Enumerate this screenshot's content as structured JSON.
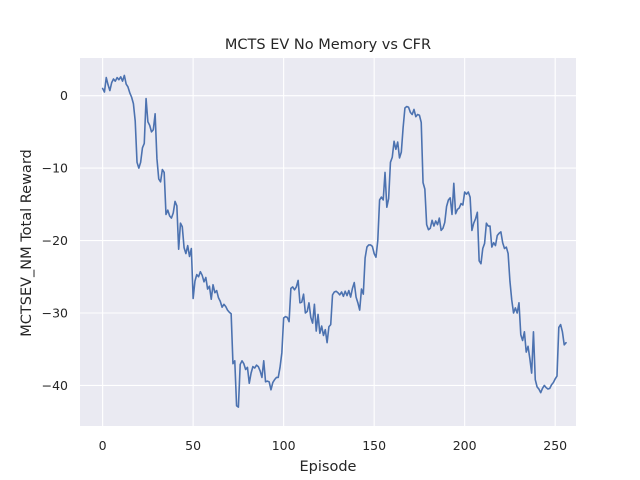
{
  "chart_data": {
    "type": "line",
    "title": "MCTS EV No Memory vs CFR",
    "xlabel": "Episode",
    "ylabel": "MCTSEV_NM Total Reward",
    "xlim": [
      -12.5,
      261.5
    ],
    "ylim": [
      -45.6,
      5.2
    ],
    "xticks": [
      0,
      50,
      100,
      150,
      200,
      250
    ],
    "yticks": [
      0,
      -10,
      -20,
      -30,
      -40
    ],
    "grid": true,
    "background": "#eaeaf2",
    "grid_color": "#ffffff",
    "line_color": "#4c72b0",
    "series": [
      {
        "values": [
          1,
          0.5,
          2.5,
          1.5,
          0.7,
          1.8,
          2.3,
          2.0,
          2.5,
          2.2,
          2.6,
          2.0,
          2.8,
          1.6,
          1.2,
          0.4,
          -0.2,
          -1.1,
          -3.5,
          -9.2,
          -10.0,
          -9.2,
          -7.2,
          -6.6,
          -0.4,
          -3.6,
          -4.1,
          -5.0,
          -4.7,
          -2.5,
          -8.7,
          -11.5,
          -11.9,
          -10.2,
          -10.6,
          -16.4,
          -15.8,
          -16.6,
          -16.9,
          -16.2,
          -14.6,
          -15.2,
          -21.2,
          -17.6,
          -18.1,
          -21.0,
          -21.8,
          -20.7,
          -22.2,
          -21.1,
          -28.0,
          -25.6,
          -24.7,
          -25.0,
          -24.3,
          -24.8,
          -25.7,
          -25.1,
          -26.7,
          -26.3,
          -28.1,
          -26.1,
          -27.2,
          -26.9,
          -27.9,
          -28.4,
          -29.2,
          -28.8,
          -29.1,
          -29.6,
          -29.9,
          -30.1,
          -37.0,
          -36.6,
          -42.8,
          -43.0,
          -37.1,
          -36.6,
          -37.0,
          -37.8,
          -37.5,
          -39.7,
          -38.3,
          -37.4,
          -37.6,
          -37.2,
          -37.4,
          -38.0,
          -38.9,
          -36.6,
          -39.5,
          -39.4,
          -39.5,
          -40.6,
          -39.6,
          -39.2,
          -38.9,
          -38.9,
          -37.5,
          -35.5,
          -30.7,
          -30.5,
          -30.6,
          -31.2,
          -26.6,
          -26.4,
          -26.8,
          -26.4,
          -25.5,
          -28.6,
          -28.5,
          -27.4,
          -30.0,
          -29.8,
          -28.6,
          -30.6,
          -31.4,
          -28.8,
          -32.5,
          -30.2,
          -32.8,
          -31.8,
          -33.1,
          -32.3,
          -34.1,
          -31.9,
          -31.6,
          -27.5,
          -27.1,
          -27.0,
          -27.2,
          -27.5,
          -27.1,
          -27.7,
          -27.0,
          -27.6,
          -26.9,
          -27.8,
          -26.6,
          -25.8,
          -27.8,
          -28.6,
          -29.6,
          -26.7,
          -27.4,
          -22.4,
          -20.9,
          -20.6,
          -20.6,
          -20.8,
          -21.8,
          -22.3,
          -20.0,
          -14.4,
          -14.0,
          -14.4,
          -10.6,
          -15.4,
          -14.2,
          -9.2,
          -8.5,
          -6.3,
          -7.4,
          -6.4,
          -8.6,
          -7.8,
          -4.4,
          -1.7,
          -1.5,
          -1.6,
          -2.3,
          -2.6,
          -1.9,
          -2.9,
          -2.6,
          -2.7,
          -3.7,
          -12.0,
          -12.9,
          -17.8,
          -18.5,
          -18.3,
          -17.2,
          -18.0,
          -17.3,
          -17.8,
          -16.9,
          -18.6,
          -18.3,
          -17.5,
          -15.3,
          -14.4,
          -14.1,
          -16.4,
          -12.1,
          -16.3,
          -15.7,
          -15.5,
          -14.9,
          -15.1,
          -13.3,
          -13.6,
          -13.3,
          -14.0,
          -18.6,
          -17.6,
          -17.0,
          -16.1,
          -22.8,
          -23.2,
          -21.1,
          -20.4,
          -17.6,
          -18.0,
          -18.0,
          -20.9,
          -20.3,
          -20.7,
          -19.3,
          -19.0,
          -18.8,
          -20.3,
          -21.1,
          -20.9,
          -21.8,
          -25.6,
          -28.2,
          -30.0,
          -29.3,
          -30.0,
          -28.6,
          -33.0,
          -33.8,
          -32.6,
          -35.4,
          -34.6,
          -36.3,
          -38.3,
          -32.6,
          -39.2,
          -40.2,
          -40.5,
          -41.0,
          -40.4,
          -40.0,
          -40.3,
          -40.5,
          -40.4,
          -39.9,
          -39.6,
          -39.1,
          -38.7,
          -32.0,
          -31.6,
          -32.6,
          -34.4,
          -34.1
        ]
      }
    ]
  }
}
